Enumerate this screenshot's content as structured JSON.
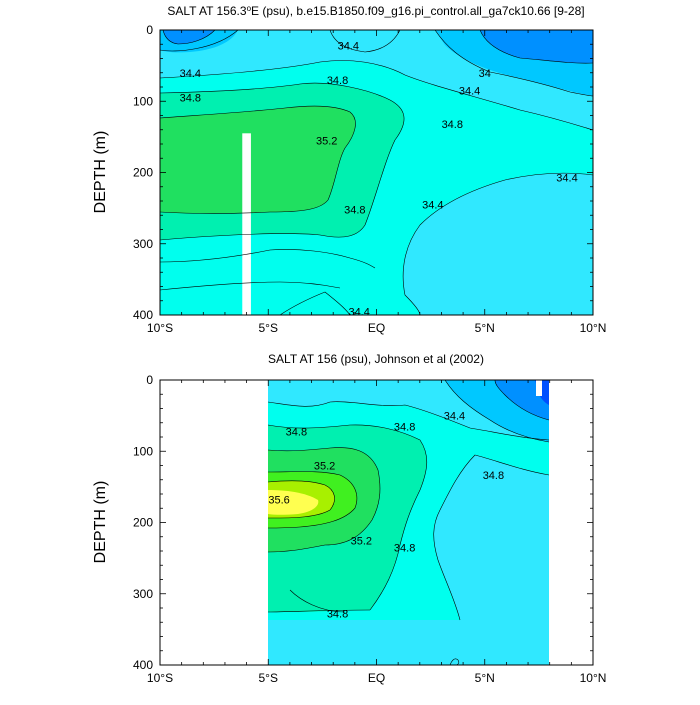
{
  "colors": {
    "shades": [
      "#0050ff",
      "#0090ff",
      "#00c8ff",
      "#30e8ff",
      "#00ffee",
      "#00f0b0",
      "#20e060",
      "#40f020",
      "#a8f000",
      "#ffff50"
    ],
    "contour_line": "#000000",
    "missing": "#ffffff"
  },
  "chart_data": [
    {
      "type": "heatmap",
      "title": "SALT AT 156.3°E (psu), b.e15.B1850.f09_g16.pi_control.all_ga7ck10.66 [9-28]",
      "title_prefix": "SALT AT 156.3",
      "title_suffix": "E (psu), b.e15.B1850.f09_g16.pi_control.all_ga7ck10.66 [9-28]",
      "ylabel": "DEPTH (m)",
      "xlabel": "",
      "x_range": [
        -10,
        10
      ],
      "y_range": [
        0,
        400
      ],
      "y_reversed": true,
      "x_tick_values": [
        -10,
        -5,
        0,
        5,
        10
      ],
      "x_ticks": [
        "10°S",
        "5°S",
        "EQ",
        "5°N",
        "10°N"
      ],
      "y_ticks": [
        0,
        100,
        200,
        300,
        400
      ],
      "contour_levels": [
        33.6,
        34.0,
        34.4,
        34.8,
        35.2,
        35.6
      ],
      "contour_labels": [
        {
          "text": "34.4",
          "x": -8.6,
          "y": 60
        },
        {
          "text": "34.8",
          "x": -8.6,
          "y": 95
        },
        {
          "text": "34.4",
          "x": -1.3,
          "y": 22
        },
        {
          "text": "34.8",
          "x": -1.8,
          "y": 70
        },
        {
          "text": "35.2",
          "x": -2.3,
          "y": 155
        },
        {
          "text": "34",
          "x": 5.0,
          "y": 60
        },
        {
          "text": "34.4",
          "x": 4.3,
          "y": 85
        },
        {
          "text": "34.8",
          "x": 3.5,
          "y": 132
        },
        {
          "text": "34.4",
          "x": 8.8,
          "y": 207
        },
        {
          "text": "34.4",
          "x": 2.6,
          "y": 245
        },
        {
          "text": "34.8",
          "x": -1.0,
          "y": 252
        },
        {
          "text": "34.4",
          "x": -0.8,
          "y": 395
        }
      ],
      "gap": {
        "x": [
          -6.2,
          -5.8
        ],
        "y": [
          145,
          400
        ]
      }
    },
    {
      "type": "heatmap",
      "title": "SALT AT 156 (psu), Johnson et al (2002)",
      "ylabel": "DEPTH (m)",
      "xlabel": "",
      "x_range": [
        -10,
        10
      ],
      "y_range": [
        0,
        400
      ],
      "y_reversed": true,
      "x_tick_values": [
        -10,
        -5,
        0,
        5,
        10
      ],
      "x_ticks": [
        "10°S",
        "5°S",
        "EQ",
        "5°N",
        "10°N"
      ],
      "y_ticks": [
        0,
        100,
        200,
        300,
        400
      ],
      "data_x_range": [
        -5,
        8
      ],
      "contour_levels": [
        33.6,
        34.0,
        34.4,
        34.8,
        35.2,
        35.6
      ],
      "contour_labels": [
        {
          "text": "34.8",
          "x": -3.7,
          "y": 72
        },
        {
          "text": "34.8",
          "x": 1.3,
          "y": 65
        },
        {
          "text": "34.4",
          "x": 3.6,
          "y": 50
        },
        {
          "text": "35.2",
          "x": -2.4,
          "y": 120
        },
        {
          "text": "35.6",
          "x": -4.5,
          "y": 168
        },
        {
          "text": "35.2",
          "x": -0.7,
          "y": 225
        },
        {
          "text": "34.8",
          "x": 1.3,
          "y": 235
        },
        {
          "text": "34.8",
          "x": 5.4,
          "y": 133
        },
        {
          "text": "34.8",
          "x": -1.8,
          "y": 328
        }
      ]
    }
  ]
}
